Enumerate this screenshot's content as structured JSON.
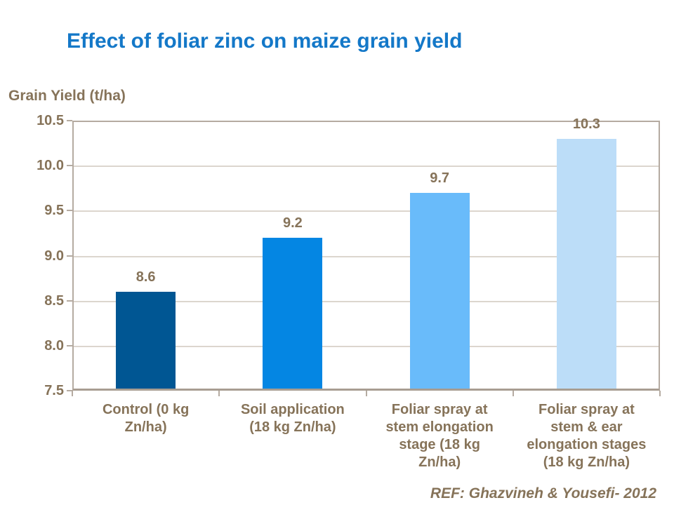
{
  "chart_data": {
    "type": "bar",
    "title": "Effect of foliar zinc on maize grain yield",
    "ylabel": "Grain Yield (t/ha)",
    "xlabel": "",
    "source_note": "REF: Ghazvineh & Yousefi- 2012",
    "categories": [
      "Control (0 kg Zn/ha)",
      "Soil application (18 kg Zn/ha)",
      "Foliar spray at stem elongation stage (18 kg Zn/ha)",
      "Foliar spray at stem & ear elongation stages (18 kg Zn/ha)"
    ],
    "category_label_lines": [
      [
        "Control (0 kg",
        "Zn/ha)"
      ],
      [
        "Soil application",
        "(18 kg Zn/ha)"
      ],
      [
        "Foliar spray at",
        "stem elongation",
        "stage (18 kg",
        "Zn/ha)"
      ],
      [
        "Foliar spray at",
        "stem & ear",
        "elongation stages",
        "(18 kg Zn/ha)"
      ]
    ],
    "values": [
      8.6,
      9.2,
      9.7,
      10.3
    ],
    "value_labels": [
      "8.6",
      "9.2",
      "9.7",
      "10.3"
    ],
    "ylim": [
      7.5,
      10.5
    ],
    "yticks": [
      7.5,
      8.0,
      8.5,
      9.0,
      9.5,
      10.0,
      10.5
    ],
    "ytick_labels": [
      "7.5",
      "8.0",
      "8.5",
      "9.0",
      "9.5",
      "10.0",
      "10.5"
    ],
    "grid": true,
    "legend": false,
    "colors": {
      "title": "#1478C8",
      "text_brown": "#867359",
      "bars": [
        "#005693",
        "#0486E3",
        "#69BBFA",
        "#BCDDF8"
      ],
      "axis_line": "#B5ABA1",
      "axis_bottom": "#A89D92",
      "gridline": "#DCD6CE",
      "background": "#FFFFFF"
    }
  }
}
